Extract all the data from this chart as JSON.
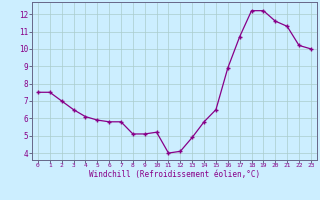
{
  "x": [
    0,
    1,
    2,
    3,
    4,
    5,
    6,
    7,
    8,
    9,
    10,
    11,
    12,
    13,
    14,
    15,
    16,
    17,
    18,
    19,
    20,
    21,
    22,
    23
  ],
  "y": [
    7.5,
    7.5,
    7.0,
    6.5,
    6.1,
    5.9,
    5.8,
    5.8,
    5.1,
    5.1,
    5.2,
    4.0,
    4.1,
    4.9,
    5.8,
    6.5,
    8.9,
    10.7,
    12.2,
    12.2,
    11.6,
    11.3,
    10.2,
    10.0
  ],
  "line_color": "#880088",
  "marker": "+",
  "bg_color": "#cceeff",
  "grid_color": "#aacccc",
  "xlabel": "Windchill (Refroidissement éolien,°C)",
  "tick_color": "#880088",
  "ylabel_ticks": [
    4,
    5,
    6,
    7,
    8,
    9,
    10,
    11,
    12
  ],
  "ylim": [
    3.6,
    12.7
  ],
  "xlim": [
    -0.5,
    23.5
  ],
  "axis_color": "#666688"
}
